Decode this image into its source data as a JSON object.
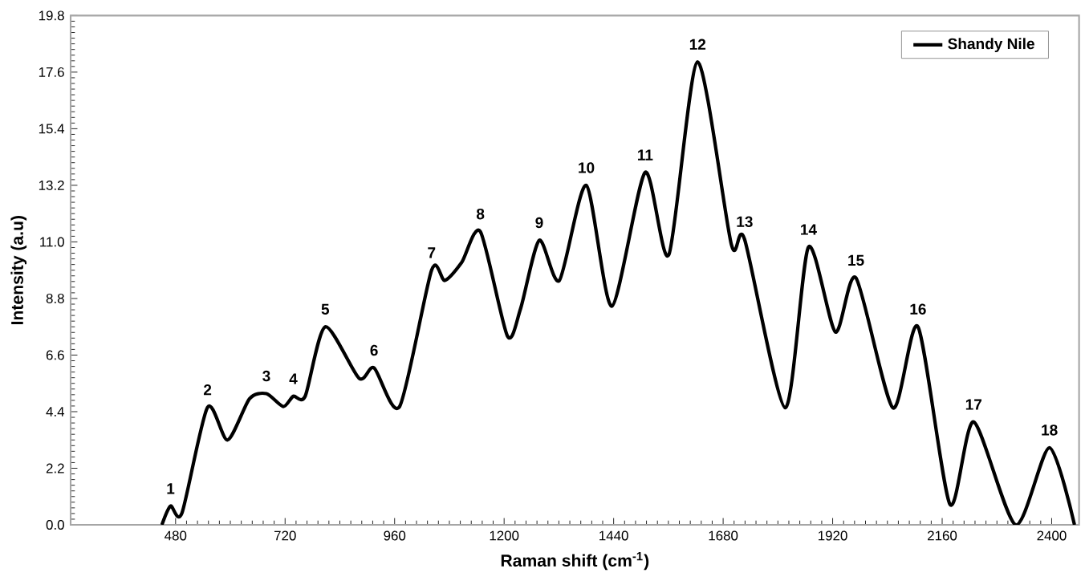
{
  "chart_data": {
    "type": "line",
    "xlabel": "Raman shift (cm$^{-1}$)",
    "ylabel": "Intensity (a.u)",
    "xlim": [
      250,
      2460
    ],
    "ylim": [
      0,
      19.8
    ],
    "xticks": [
      480,
      720,
      960,
      1200,
      1440,
      1680,
      1920,
      2160,
      2400
    ],
    "yticks": [
      {
        "value": 0,
        "label": "0.0"
      },
      2.2,
      4.4,
      6.6,
      8.8,
      {
        "value": 11,
        "label": "11.0"
      },
      13.2,
      15.4,
      17.6,
      19.8
    ],
    "grid": false,
    "legend": "top right",
    "marker": "none",
    "line_style": "solid",
    "series": [
      {
        "name": "Shandy Nile",
        "color": "#000000",
        "x": [
          450,
          469,
          494,
          550,
          594,
          642,
          679,
          716,
          738,
          764,
          808,
          882,
          915,
          971,
          1041,
          1070,
          1107,
          1148,
          1207,
          1236,
          1277,
          1321,
          1380,
          1436,
          1509,
          1561,
          1624,
          1698,
          1727,
          1816,
          1867,
          1926,
          1971,
          2052,
          2107,
          2177,
          2229,
          2321,
          2395,
          2450
        ],
        "values": [
          0,
          0.73,
          0.46,
          4.57,
          3.3,
          4.9,
          5.1,
          4.6,
          5.0,
          5.0,
          7.7,
          5.7,
          6.1,
          4.6,
          9.9,
          9.5,
          10.2,
          11.4,
          7.35,
          8.4,
          11.06,
          9.5,
          13.2,
          8.5,
          13.7,
          10.5,
          18.0,
          10.9,
          11.1,
          4.55,
          10.8,
          7.5,
          9.6,
          4.55,
          7.7,
          0.8,
          4.0,
          0,
          3.0,
          0
        ]
      }
    ],
    "annotations": [
      {
        "text": "1",
        "x": 469,
        "y": 0.73
      },
      {
        "text": "2",
        "x": 550,
        "y": 4.57
      },
      {
        "text": "3",
        "x": 679,
        "y": 5.1
      },
      {
        "text": "4",
        "x": 738,
        "y": 5.0
      },
      {
        "text": "5",
        "x": 808,
        "y": 7.7
      },
      {
        "text": "6",
        "x": 915,
        "y": 6.1
      },
      {
        "text": "7",
        "x": 1041,
        "y": 9.9
      },
      {
        "text": "8",
        "x": 1148,
        "y": 11.4
      },
      {
        "text": "9",
        "x": 1277,
        "y": 11.06
      },
      {
        "text": "10",
        "x": 1380,
        "y": 13.2
      },
      {
        "text": "11",
        "x": 1509,
        "y": 13.7
      },
      {
        "text": "12",
        "x": 1624,
        "y": 18.0
      },
      {
        "text": "13",
        "x": 1727,
        "y": 11.1
      },
      {
        "text": "14",
        "x": 1867,
        "y": 10.8
      },
      {
        "text": "15",
        "x": 1971,
        "y": 9.6
      },
      {
        "text": "16",
        "x": 2107,
        "y": 7.7
      },
      {
        "text": "17",
        "x": 2229,
        "y": 4.0
      },
      {
        "text": "18",
        "x": 2395,
        "y": 3.0
      }
    ]
  }
}
